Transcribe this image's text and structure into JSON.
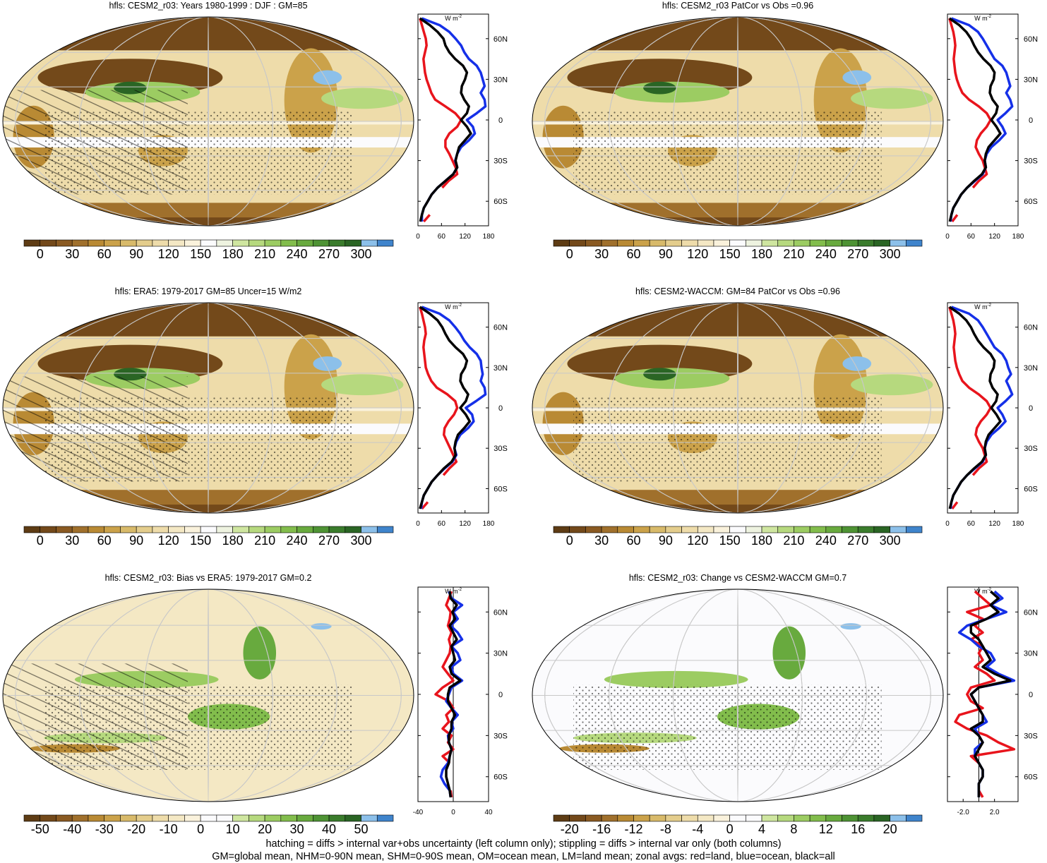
{
  "footnotes": {
    "line1": "hatching = diffs > internal var+obs uncertainty (left column only); stippling = diffs > internal var only (both columns)",
    "line2": "GM=global mean, NHM=0-90N mean, SHM=0-90S mean, OM=ocean mean, LM=land mean; zonal avgs: red=land, blue=ocean, black=all"
  },
  "colors": {
    "land": "#e8141c",
    "ocean": "#1530e8",
    "all": "#000000",
    "abs_scale": [
      "#5e3c14",
      "#73491a",
      "#8a5a22",
      "#a0702c",
      "#b98a34",
      "#cba24a",
      "#d8ba6a",
      "#e4cd8c",
      "#eedcaa",
      "#f4e8c4",
      "#faf2dc",
      "#fbfbfd",
      "#eef3e0",
      "#cfe6a0",
      "#b6d97e",
      "#9ccc62",
      "#82bd4c",
      "#68aa3e",
      "#4e9334",
      "#3a7c2c",
      "#2a6524",
      "#8cc0ea",
      "#3f84cc"
    ],
    "diff_scale": [
      "#5e3c14",
      "#73491a",
      "#8a5a22",
      "#a0702c",
      "#b98a34",
      "#cba24a",
      "#d8ba6a",
      "#e4cd8c",
      "#eedcaa",
      "#f4e8c4",
      "#faf2dc",
      "#fbfbfd",
      "#fbfbfd",
      "#cfe6a0",
      "#b6d97e",
      "#9ccc62",
      "#82bd4c",
      "#68aa3e",
      "#4e9334",
      "#3a7c2c",
      "#2a6524",
      "#8cc0ea",
      "#3f84cc"
    ]
  },
  "zonal_axis_labels": [
    "60N",
    "30N",
    "0",
    "30S",
    "60S"
  ],
  "zonal_units": "W m",
  "zonal_units_exp": "-2",
  "chart_data": [
    {
      "type": "map",
      "title": "hfls: CESM2_r03: Years 1980-1999 : DJF : GM=85",
      "colorbar_labels": [
        "0",
        "30",
        "60",
        "90",
        "120",
        "150",
        "180",
        "210",
        "240",
        "270",
        "300"
      ],
      "colorbar_kind": "abs",
      "zonal": {
        "xlim": [
          0,
          180
        ],
        "xticks": [
          "0",
          "60",
          "120",
          "180"
        ],
        "lat": [
          75,
          70,
          65,
          60,
          55,
          50,
          45,
          40,
          35,
          30,
          25,
          20,
          15,
          10,
          5,
          0,
          -5,
          -10,
          -15,
          -20,
          -25,
          -30,
          -35,
          -40,
          -45,
          -50,
          -55,
          -60,
          -65,
          -70,
          -75
        ],
        "land": [
          5,
          10,
          15,
          20,
          22,
          18,
          14,
          16,
          18,
          22,
          28,
          34,
          44,
          70,
          95,
          110,
          100,
          80,
          70,
          70,
          80,
          88,
          96,
          100,
          78,
          62,
          null,
          null,
          null,
          30,
          15
        ],
        "ocean": [
          10,
          55,
          80,
          96,
          110,
          118,
          130,
          150,
          160,
          165,
          170,
          160,
          170,
          172,
          150,
          125,
          140,
          145,
          130,
          110,
          100,
          95,
          100,
          90,
          70,
          50,
          35,
          25,
          15,
          10,
          10
        ],
        "all": [
          5,
          30,
          50,
          65,
          70,
          80,
          95,
          115,
          125,
          120,
          112,
          110,
          118,
          130,
          125,
          110,
          125,
          135,
          120,
          105,
          100,
          96,
          100,
          90,
          70,
          50,
          35,
          25,
          15,
          10,
          6
        ]
      }
    },
    {
      "type": "map",
      "title": "hfls: CESM2_r03 PatCor vs Obs =0.96",
      "colorbar_labels": [
        "0",
        "30",
        "60",
        "90",
        "120",
        "150",
        "180",
        "210",
        "240",
        "270",
        "300"
      ],
      "colorbar_kind": "abs",
      "zonal": {
        "xlim": [
          0,
          180
        ],
        "xticks": [
          "0",
          "60",
          "120",
          "180"
        ],
        "lat": [
          75,
          70,
          65,
          60,
          55,
          50,
          45,
          40,
          35,
          30,
          25,
          20,
          15,
          10,
          5,
          0,
          -5,
          -10,
          -15,
          -20,
          -25,
          -30,
          -35,
          -40,
          -45,
          -50,
          -55,
          -60,
          -65,
          -70,
          -75
        ],
        "land": [
          5,
          10,
          15,
          18,
          20,
          18,
          16,
          18,
          20,
          24,
          30,
          38,
          55,
          80,
          100,
          110,
          100,
          85,
          75,
          72,
          80,
          90,
          95,
          100,
          80,
          65,
          null,
          null,
          null,
          25,
          12
        ],
        "ocean": [
          10,
          55,
          78,
          90,
          100,
          110,
          120,
          140,
          150,
          155,
          160,
          150,
          160,
          165,
          148,
          128,
          140,
          148,
          132,
          112,
          100,
          95,
          98,
          90,
          70,
          50,
          35,
          25,
          15,
          10,
          8
        ],
        "all": [
          5,
          30,
          48,
          60,
          68,
          78,
          92,
          110,
          120,
          118,
          110,
          108,
          115,
          128,
          124,
          112,
          125,
          135,
          120,
          105,
          98,
          95,
          98,
          88,
          68,
          50,
          35,
          25,
          15,
          10,
          6
        ]
      }
    },
    {
      "type": "map",
      "title": "hfls: ERA5: 1979-2017 GM=85 Uncer=15 W/m2",
      "colorbar_labels": [
        "0",
        "30",
        "60",
        "90",
        "120",
        "150",
        "180",
        "210",
        "240",
        "270",
        "300"
      ],
      "colorbar_kind": "abs",
      "zonal": {
        "xlim": [
          0,
          180
        ],
        "xticks": [
          "0",
          "60",
          "120",
          "180"
        ],
        "lat": [
          75,
          70,
          65,
          60,
          55,
          50,
          45,
          40,
          35,
          30,
          25,
          20,
          15,
          10,
          5,
          0,
          -5,
          -10,
          -15,
          -20,
          -25,
          -30,
          -35,
          -40,
          -45,
          -50,
          -55,
          -60,
          -65,
          -70,
          -75
        ],
        "land": [
          5,
          10,
          14,
          18,
          20,
          16,
          14,
          16,
          18,
          20,
          26,
          34,
          48,
          75,
          95,
          100,
          92,
          78,
          68,
          66,
          74,
          82,
          90,
          98,
          80,
          65,
          null,
          null,
          null,
          25,
          10
        ],
        "ocean": [
          10,
          55,
          80,
          95,
          108,
          118,
          132,
          150,
          160,
          162,
          165,
          160,
          170,
          172,
          148,
          122,
          138,
          142,
          128,
          108,
          98,
          93,
          98,
          88,
          68,
          50,
          35,
          25,
          15,
          10,
          8
        ],
        "all": [
          5,
          30,
          50,
          62,
          70,
          80,
          96,
          115,
          125,
          120,
          110,
          108,
          116,
          128,
          122,
          108,
          122,
          132,
          118,
          102,
          96,
          93,
          96,
          86,
          66,
          50,
          35,
          25,
          15,
          10,
          5
        ]
      }
    },
    {
      "type": "map",
      "title": "hfls: CESM2-WACCM: GM=84 PatCor vs Obs =0.96",
      "colorbar_labels": [
        "0",
        "30",
        "60",
        "90",
        "120",
        "150",
        "180",
        "210",
        "240",
        "270",
        "300"
      ],
      "colorbar_kind": "abs",
      "zonal": {
        "xlim": [
          0,
          180
        ],
        "xticks": [
          "0",
          "60",
          "120",
          "180"
        ],
        "lat": [
          75,
          70,
          65,
          60,
          55,
          50,
          45,
          40,
          35,
          30,
          25,
          20,
          15,
          10,
          5,
          0,
          -5,
          -10,
          -15,
          -20,
          -25,
          -30,
          -35,
          -40,
          -45,
          -50,
          -55,
          -60,
          -65,
          -70,
          -75
        ],
        "land": [
          5,
          10,
          15,
          18,
          20,
          18,
          16,
          18,
          20,
          24,
          30,
          38,
          55,
          80,
          100,
          110,
          100,
          85,
          75,
          72,
          80,
          90,
          95,
          100,
          80,
          65,
          null,
          null,
          null,
          25,
          12
        ],
        "ocean": [
          10,
          55,
          78,
          90,
          100,
          110,
          120,
          140,
          150,
          155,
          162,
          150,
          158,
          165,
          148,
          128,
          140,
          148,
          132,
          112,
          100,
          95,
          98,
          90,
          70,
          50,
          35,
          25,
          15,
          10,
          8
        ],
        "all": [
          5,
          30,
          48,
          60,
          68,
          78,
          92,
          110,
          120,
          118,
          110,
          108,
          115,
          128,
          124,
          112,
          125,
          135,
          120,
          105,
          98,
          95,
          98,
          88,
          68,
          50,
          35,
          25,
          15,
          10,
          6
        ]
      }
    },
    {
      "type": "map",
      "title": "hfls: CESM2_r03: Bias vs ERA5: 1979-2017 GM=0.2",
      "colorbar_labels": [
        "-50",
        "-40",
        "-30",
        "-20",
        "-10",
        "0",
        "10",
        "20",
        "30",
        "40",
        "50"
      ],
      "colorbar_kind": "diff",
      "zonal": {
        "xlim": [
          -40,
          40
        ],
        "xticks": [
          "-40",
          "0",
          "40"
        ],
        "lat": [
          75,
          70,
          65,
          60,
          55,
          50,
          45,
          40,
          35,
          30,
          25,
          20,
          15,
          10,
          5,
          0,
          -5,
          -10,
          -15,
          -20,
          -25,
          -30,
          -35,
          -40,
          -45,
          -50,
          -55,
          -60,
          -65,
          -70,
          -75
        ],
        "land": [
          -2,
          -5,
          -8,
          -3,
          -4,
          -6,
          -2,
          -5,
          -3,
          -4,
          -8,
          -12,
          -6,
          0,
          -12,
          -20,
          -5,
          0,
          -8,
          -5,
          -12,
          -2,
          -6,
          0,
          -12,
          -4,
          null,
          null,
          null,
          -3,
          -2
        ],
        "ocean": [
          -5,
          -2,
          10,
          0,
          5,
          -3,
          5,
          10,
          -2,
          5,
          8,
          -2,
          0,
          10,
          -2,
          -5,
          -8,
          -2,
          5,
          -2,
          0,
          -6,
          -5,
          -2,
          -4,
          -6,
          -12,
          -14,
          -10,
          -4,
          -3
        ],
        "all": [
          -4,
          -3,
          4,
          -1,
          2,
          -4,
          0,
          4,
          -2,
          0,
          2,
          -4,
          -2,
          8,
          -4,
          -6,
          -6,
          -2,
          2,
          -2,
          -2,
          -5,
          -5,
          -2,
          -4,
          -5,
          -8,
          -8,
          -6,
          -4,
          -3
        ]
      }
    },
    {
      "type": "map",
      "title": "hfls: CESM2_r03: Change vs CESM2-WACCM GM=0.7",
      "colorbar_labels": [
        "-20",
        "-16",
        "-12",
        "-8",
        "-4",
        "0",
        "4",
        "8",
        "12",
        "16",
        "20"
      ],
      "colorbar_kind": "diff",
      "zonal": {
        "xlim": [
          -4,
          5
        ],
        "xticks": [
          "-2.0",
          "2.0"
        ],
        "lat": [
          75,
          70,
          65,
          60,
          55,
          50,
          45,
          40,
          35,
          30,
          25,
          20,
          15,
          10,
          5,
          0,
          -5,
          -10,
          -15,
          -20,
          -25,
          -30,
          -35,
          -40,
          -45,
          -50,
          -55,
          -60,
          -65,
          -70,
          -75
        ],
        "land": [
          -0.5,
          0.5,
          1.5,
          -1.5,
          0.5,
          -0.5,
          0.5,
          -1,
          0.5,
          0,
          0.5,
          -0.5,
          1,
          2,
          -1,
          -1.5,
          -1,
          0.5,
          -2.5,
          -3,
          -1.5,
          1,
          2.5,
          4.5,
          -1,
          0,
          null,
          null,
          null,
          0,
          0.5
        ],
        "ocean": [
          2,
          3,
          1.5,
          3.5,
          1,
          -1.5,
          -2.5,
          -1,
          0,
          1.5,
          2,
          1,
          2.5,
          4.5,
          0,
          -1,
          -0.5,
          0,
          0.5,
          1,
          -0.5,
          0,
          0.5,
          -0.5,
          -0.5,
          0,
          0.5,
          0.5,
          0,
          0,
          0
        ],
        "all": [
          1.5,
          2.5,
          1.5,
          2.5,
          1,
          -1,
          -1,
          0,
          0.5,
          1,
          1.5,
          0.5,
          2,
          4,
          0,
          -1,
          -0.5,
          0,
          0.5,
          0.5,
          -1,
          0,
          0.5,
          0,
          -0.5,
          0,
          0.5,
          0.5,
          0,
          0,
          0
        ]
      }
    }
  ]
}
